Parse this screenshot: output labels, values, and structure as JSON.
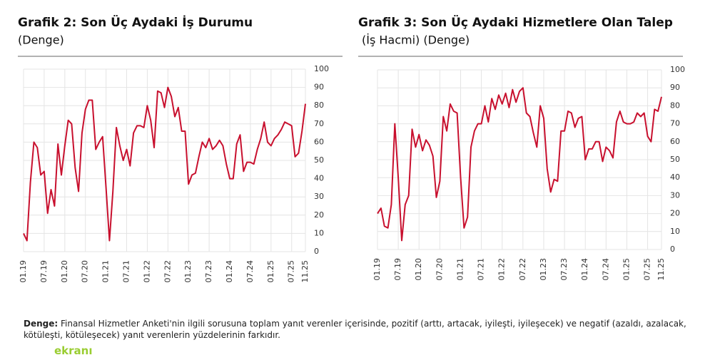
{
  "chart_data": [
    {
      "type": "line",
      "title": "Grafik 2: Son Üç Aydaki İş Durumu",
      "subtitle": "(Denge)",
      "categories": [
        "01.19",
        null,
        null,
        null,
        null,
        null,
        "07.19",
        null,
        null,
        null,
        null,
        null,
        "01.20",
        null,
        null,
        null,
        null,
        null,
        "07.20",
        null,
        null,
        null,
        null,
        null,
        "01.21",
        null,
        null,
        null,
        null,
        null,
        "07.21",
        null,
        null,
        null,
        null,
        null,
        "01.22",
        null,
        null,
        null,
        null,
        null,
        "07.22",
        null,
        null,
        null,
        null,
        null,
        "01.23",
        null,
        null,
        null,
        null,
        null,
        "07.23",
        null,
        null,
        null,
        null,
        null,
        "01.24",
        null,
        null,
        null,
        null,
        null,
        "07.24",
        null,
        null,
        null,
        null,
        null,
        "01.25",
        null,
        null,
        null,
        null,
        null,
        "07.25",
        null,
        null,
        null,
        "11.25"
      ],
      "series": [
        {
          "color": "#c8102e",
          "values": [
            10,
            6,
            38,
            60,
            57,
            42,
            44,
            21,
            34,
            25,
            59,
            42,
            58,
            72,
            70,
            46,
            33,
            65,
            78,
            83,
            83,
            56,
            60,
            63,
            35,
            6,
            33,
            68,
            58,
            50,
            56,
            47,
            65,
            69,
            69,
            68,
            80,
            72,
            57,
            88,
            87,
            79,
            90,
            85,
            74,
            79,
            66,
            66,
            37,
            42,
            43,
            52,
            60,
            57,
            62,
            56,
            58,
            61,
            58,
            48,
            40,
            40,
            59,
            64,
            44,
            49,
            49,
            48,
            56,
            62,
            71,
            60,
            58,
            62,
            64,
            67,
            71,
            70,
            69,
            52,
            54,
            66,
            81
          ]
        }
      ],
      "ylim": [
        0,
        100
      ],
      "yticks": [
        0,
        10,
        20,
        30,
        40,
        50,
        60,
        70,
        80,
        90,
        100
      ],
      "grid": true
    },
    {
      "type": "line",
      "title": "Grafik 3: Son Üç Aydaki Hizmetlere Olan Talep",
      "subtitle": "(İş Hacmi) (Denge)",
      "categories": [
        "01.19",
        null,
        null,
        null,
        null,
        null,
        "07.19",
        null,
        null,
        null,
        null,
        null,
        "01.20",
        null,
        null,
        null,
        null,
        null,
        "07.20",
        null,
        null,
        null,
        null,
        null,
        "01.21",
        null,
        null,
        null,
        null,
        null,
        "07.21",
        null,
        null,
        null,
        null,
        null,
        "01.22",
        null,
        null,
        null,
        null,
        null,
        "07.22",
        null,
        null,
        null,
        null,
        null,
        "01.23",
        null,
        null,
        null,
        null,
        null,
        "07.23",
        null,
        null,
        null,
        null,
        null,
        "01.24",
        null,
        null,
        null,
        null,
        null,
        "07.24",
        null,
        null,
        null,
        null,
        null,
        "01.25",
        null,
        null,
        null,
        null,
        null,
        "07.25",
        null,
        null,
        null,
        "11.25"
      ],
      "series": [
        {
          "color": "#c8102e",
          "values": [
            20,
            23,
            13,
            12,
            25,
            70,
            40,
            5,
            25,
            30,
            67,
            57,
            64,
            55,
            61,
            58,
            52,
            29,
            38,
            74,
            66,
            81,
            77,
            76,
            40,
            12,
            18,
            57,
            66,
            70,
            70,
            80,
            71,
            84,
            78,
            86,
            81,
            87,
            79,
            89,
            82,
            88,
            90,
            76,
            74,
            65,
            57,
            80,
            73,
            45,
            32,
            39,
            38,
            66,
            66,
            77,
            76,
            68,
            73,
            74,
            50,
            56,
            56,
            60,
            60,
            49,
            57,
            55,
            51,
            71,
            77,
            71,
            70,
            70,
            71,
            76,
            74,
            76,
            63,
            60,
            78,
            77,
            85
          ]
        }
      ],
      "ylim": [
        0,
        100
      ],
      "yticks": [
        0,
        10,
        20,
        30,
        40,
        50,
        60,
        70,
        80,
        90,
        100
      ],
      "grid": true
    }
  ],
  "footnote": {
    "term": "Denge:",
    "text": " Finansal Hizmetler Anketi'nin ilgili sorusuna toplam yanıt verenler içerisinde, pozitif (arttı, artacak, iyileşti, iyileşecek) ve negatif (azaldı, azalacak, kötüleşti, kötüleşecek) yanıt verenlerin yüzdelerinin farkıdır."
  },
  "watermark": "ekranı"
}
